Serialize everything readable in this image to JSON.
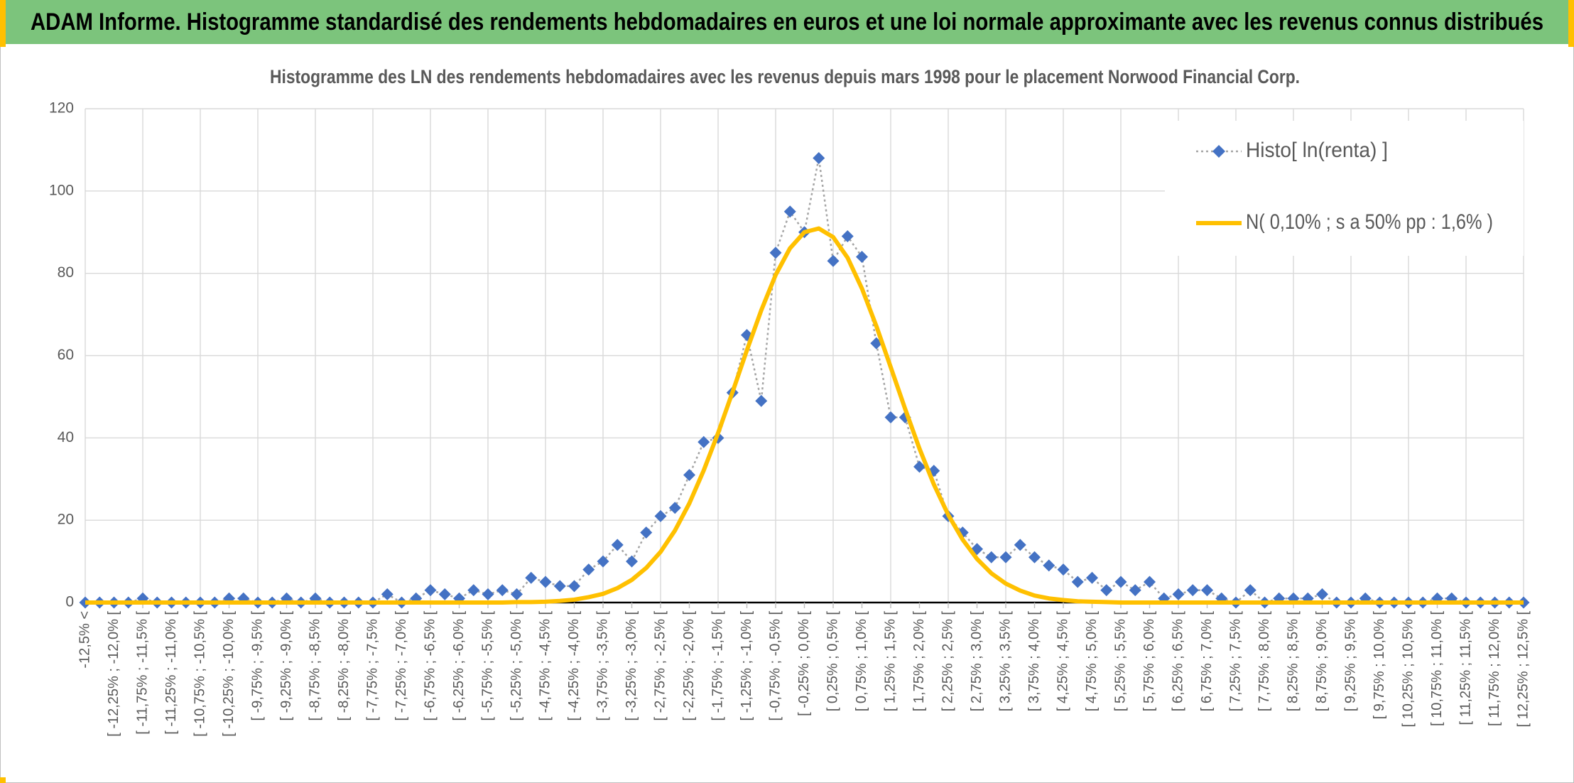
{
  "chart_data": {
    "type": "line",
    "title": "ADAM Informe. Histogramme standardisé des rendements hebdomadaires en euros et une loi normale approximante avec les revenus connus distribués",
    "subtitle": "Histogramme des LN des rendements hebdomadaires avec les revenus depuis mars 1998 pour le placement Norwood Financial Corp.",
    "categories": [
      "-12,5% <",
      null,
      "[ -12,25% ; -12,0% [",
      null,
      "[ -11,75% ; -11,5% [",
      null,
      "[ -11,25% ; -11,0% [",
      null,
      "[ -10,75% ; -10,5% [",
      null,
      "[ -10,25% ; -10,0% [",
      null,
      "[ -9,75% ; -9,5% [",
      null,
      "[ -9,25% ; -9,0% [",
      null,
      "[ -8,75% ; -8,5% [",
      null,
      "[ -8,25% ; -8,0% [",
      null,
      "[ -7,75% ; -7,5% [",
      null,
      "[ -7,25% ; -7,0% [",
      null,
      "[ -6,75% ; -6,5% [",
      null,
      "[ -6,25% ; -6,0% [",
      null,
      "[ -5,75% ; -5,5% [",
      null,
      "[ -5,25% ; -5,0% [",
      null,
      "[ -4,75% ; -4,5% [",
      null,
      "[ -4,25% ; -4,0% [",
      null,
      "[ -3,75% ; -3,5% [",
      null,
      "[ -3,25% ; -3,0% [",
      null,
      "[ -2,75% ; -2,5% [",
      null,
      "[ -2,25% ; -2,0% [",
      null,
      "[ -1,75% ; -1,5% [",
      null,
      "[ -1,25% ; -1,0% [",
      null,
      "[ -0,75% ; -0,5% [",
      null,
      "[ -0,25% ; 0,0% [",
      null,
      "[ 0,25% ; 0,5% [",
      null,
      "[ 0,75% ; 1,0% [",
      null,
      "[ 1,25% ; 1,5% [",
      null,
      "[ 1,75% ; 2,0% [",
      null,
      "[ 2,25% ; 2,5% [",
      null,
      "[ 2,75% ; 3,0% [",
      null,
      "[ 3,25% ; 3,5% [",
      null,
      "[ 3,75% ; 4,0% [",
      null,
      "[ 4,25% ; 4,5% [",
      null,
      "[ 4,75% ; 5,0% [",
      null,
      "[ 5,25% ; 5,5% [",
      null,
      "[ 5,75% ; 6,0% [",
      null,
      "[ 6,25% ; 6,5% [",
      null,
      "[ 6,75% ; 7,0% [",
      null,
      "[ 7,25% ; 7,5% [",
      null,
      "[ 7,75% ; 8,0% [",
      null,
      "[ 8,25% ; 8,5% [",
      null,
      "[ 8,75% ; 9,0% [",
      null,
      "[ 9,25% ; 9,5% [",
      null,
      "[ 9,75% ; 10,0% [",
      null,
      "[ 10,25% ; 10,5% [",
      null,
      "[ 10,75% ; 11,0% [",
      null,
      "[ 11,25% ; 11,5% [",
      null,
      "[ 11,75% ; 12,0% [",
      null,
      "[ 12,25% ; 12,5% ["
    ],
    "series": [
      {
        "name": "Histo[ ln(renta) ]",
        "color": "#4472c4",
        "line_color": "#a5a5a5",
        "marker": "diamond",
        "line_style": "dotted",
        "values": [
          0,
          0,
          0,
          0,
          1,
          0,
          0,
          0,
          0,
          0,
          1,
          1,
          0,
          0,
          1,
          0,
          1,
          0,
          0,
          0,
          0,
          2,
          0,
          1,
          3,
          2,
          1,
          3,
          2,
          3,
          2,
          6,
          5,
          4,
          4,
          8,
          10,
          14,
          10,
          17,
          21,
          23,
          31,
          39,
          40,
          51,
          65,
          49,
          85,
          95,
          90,
          108,
          83,
          89,
          84,
          63,
          45,
          45,
          33,
          32,
          21,
          17,
          13,
          11,
          11,
          14,
          11,
          9,
          8,
          5,
          6,
          3,
          5,
          3,
          5,
          1,
          2,
          3,
          3,
          1,
          0,
          3,
          0,
          1,
          1,
          1,
          2,
          0,
          0,
          1,
          0,
          0,
          0,
          0,
          1,
          1,
          0,
          0,
          0,
          0,
          0
        ]
      },
      {
        "name": "N( 0,10% ; s a 50% pp : 1,6% )",
        "color": "#ffc000",
        "marker": "none",
        "line_style": "solid",
        "values": [
          0,
          0,
          0,
          0,
          0,
          0,
          0,
          0,
          0,
          0,
          0,
          0,
          0,
          0,
          0,
          0,
          0,
          0,
          0,
          0,
          0,
          0,
          0,
          0,
          0,
          0,
          0,
          0,
          0,
          0,
          0.1,
          0.1,
          0.2,
          0.4,
          0.7,
          1.3,
          2.1,
          3.5,
          5.5,
          8.4,
          12.3,
          17.5,
          24.1,
          32.1,
          41.2,
          51.1,
          61.3,
          71.0,
          79.6,
          86.1,
          90.0,
          90.9,
          88.8,
          83.8,
          76.3,
          67.2,
          57.2,
          47.1,
          37.4,
          28.7,
          21.3,
          15.3,
          10.6,
          7.1,
          4.6,
          2.9,
          1.7,
          1.0,
          0.6,
          0.3,
          0.2,
          0.1,
          0,
          0,
          0,
          0,
          0,
          0,
          0,
          0,
          0,
          0,
          0,
          0,
          0,
          0,
          0,
          0,
          0,
          0,
          0,
          0,
          0,
          0,
          0,
          0,
          0,
          0,
          0,
          0,
          0
        ]
      }
    ],
    "ylim": [
      0,
      120
    ],
    "yticks": [
      0,
      20,
      40,
      60,
      80,
      100,
      120
    ],
    "grid": true,
    "legend": "upper right"
  }
}
